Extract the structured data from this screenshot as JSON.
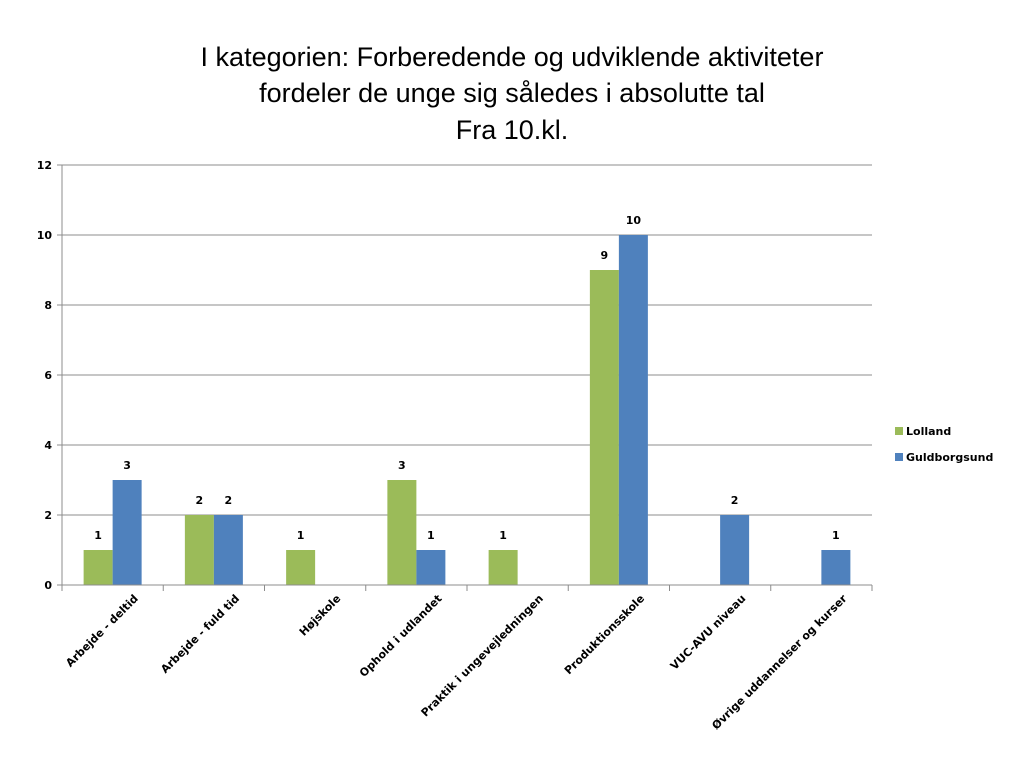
{
  "chart_data": {
    "type": "bar",
    "title": [
      "I kategorien: Forberedende og udviklende aktiviteter",
      "fordeler de unge sig således i absolutte tal",
      "Fra 10.kl."
    ],
    "categories": [
      "Arbejde - deltid",
      "Arbejde - fuld tid",
      "Højskole",
      "Ophold i udlandet",
      "Praktik i ungevejledningen",
      "Produktionsskole",
      "VUC-AVU niveau",
      "Øvrige uddannelser og kurser"
    ],
    "series": [
      {
        "name": "Lolland",
        "color": "#9BBB59",
        "values": [
          1,
          2,
          1,
          3,
          1,
          9,
          null,
          null
        ]
      },
      {
        "name": "Guldborgsund",
        "color": "#4F81BD",
        "values": [
          3,
          2,
          null,
          1,
          null,
          10,
          2,
          1
        ]
      }
    ],
    "ylim": [
      0,
      12
    ],
    "yticks": [
      0,
      2,
      4,
      6,
      8,
      10,
      12
    ],
    "grid": true,
    "data_labels": true,
    "legend_position": "right"
  }
}
